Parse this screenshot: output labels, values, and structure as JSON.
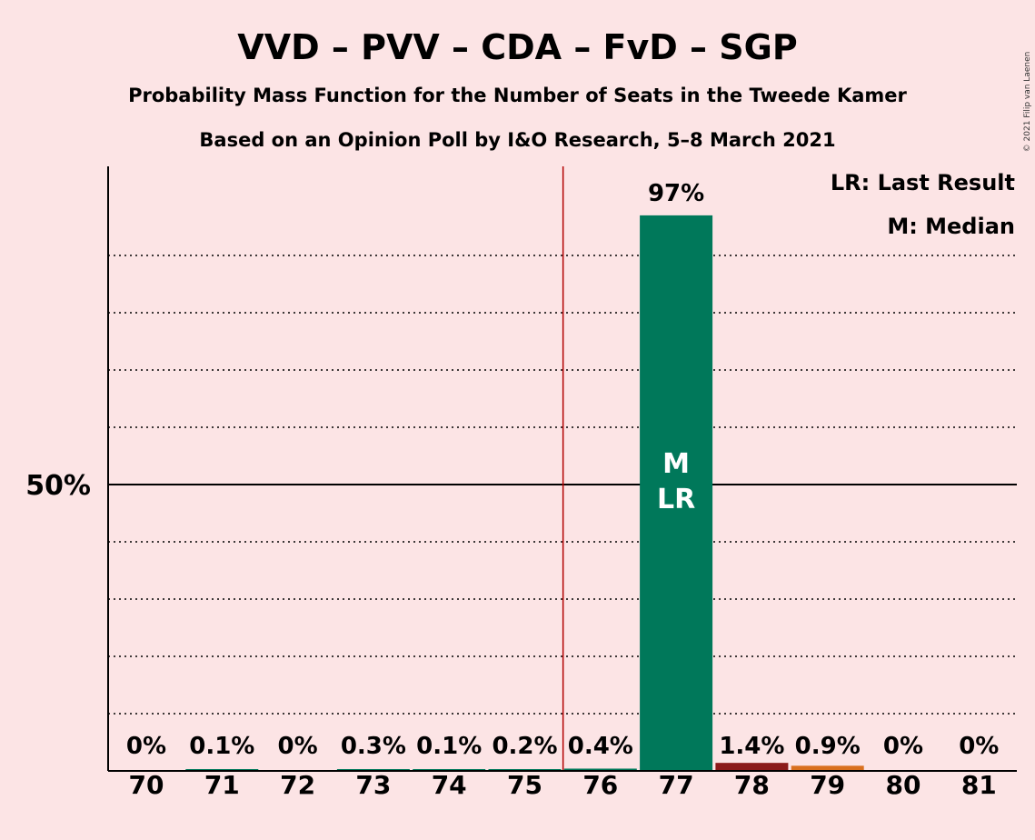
{
  "header": {
    "title": "VVD – PVV – CDA – FvD – SGP",
    "subtitle1": "Probability Mass Function for the Number of Seats in the Tweede Kamer",
    "subtitle2": "Based on an Opinion Poll by I&O Research, 5–8 March 2021",
    "copyright": "© 2021 Filip van Laenen"
  },
  "legend": {
    "last_result": "LR: Last Result",
    "median": "M: Median"
  },
  "colors": {
    "background": "#fce4e5",
    "median_bar": "#00785a",
    "bar_78": "#8b1a1a",
    "bar_79": "#d9701e",
    "bar_small": "#00785a",
    "majority_line": "#b30000"
  },
  "chart_data": {
    "type": "bar",
    "categories": [
      "70",
      "71",
      "72",
      "73",
      "74",
      "75",
      "76",
      "77",
      "78",
      "79",
      "80",
      "81"
    ],
    "values": [
      0,
      0.1,
      0,
      0.3,
      0.1,
      0.2,
      0.4,
      97,
      1.4,
      0.9,
      0,
      0
    ],
    "labels": [
      "0%",
      "0.1%",
      "0%",
      "0.3%",
      "0.1%",
      "0.2%",
      "0.4%",
      "97%",
      "1.4%",
      "0.9%",
      "0%",
      "0%"
    ],
    "ylim": [
      0,
      105
    ],
    "yticks": [
      {
        "value": 50,
        "label": "50%"
      }
    ],
    "gridlines": [
      10,
      20,
      30,
      40,
      60,
      70,
      80,
      90
    ],
    "majority_threshold": 75.5,
    "median_seat": "77",
    "last_result_seat": "77",
    "median_marker": "M",
    "last_result_marker": "LR"
  }
}
